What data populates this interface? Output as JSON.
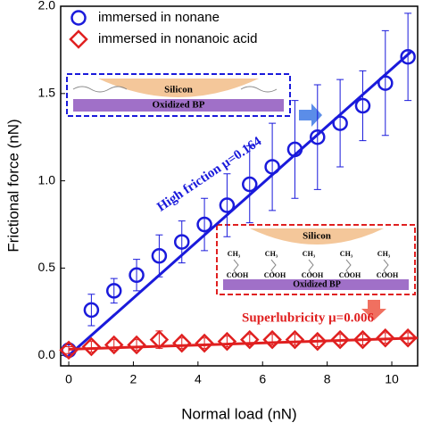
{
  "chart_data": {
    "type": "scatter",
    "xlabel": "Normal load (nN)",
    "ylabel": "Frictional force (nN)",
    "xlim": [
      -0.25,
      10.8
    ],
    "ylim": [
      -0.06,
      2.0
    ],
    "xticks": [
      0,
      2,
      4,
      6,
      8,
      10
    ],
    "yticks": [
      {
        "value": 0,
        "label": "0.0"
      },
      0.5,
      {
        "value": 1,
        "label": "1.0"
      },
      1.5,
      {
        "value": 2,
        "label": "2.0"
      }
    ],
    "legend": "upper left",
    "x": [
      0,
      0.7,
      1.4,
      2.1,
      2.8,
      3.5,
      4.2,
      4.9,
      5.6,
      6.3,
      7.0,
      7.7,
      8.4,
      9.1,
      9.8,
      10.5
    ],
    "series": [
      {
        "name": "immersed in nonane",
        "color": "#1a1adb",
        "marker": "circle",
        "values": [
          0.03,
          0.26,
          0.37,
          0.46,
          0.57,
          0.65,
          0.75,
          0.86,
          0.98,
          1.08,
          1.18,
          1.25,
          1.33,
          1.43,
          1.56,
          1.71
        ],
        "errors": [
          0.03,
          0.09,
          0.07,
          0.09,
          0.12,
          0.12,
          0.15,
          0.18,
          0.22,
          0.25,
          0.28,
          0.3,
          0.25,
          0.2,
          0.3,
          0.25
        ]
      },
      {
        "name": "immersed in nonanoic acid",
        "color": "#e02020",
        "marker": "diamond",
        "values": [
          0.03,
          0.05,
          0.06,
          0.06,
          0.09,
          0.07,
          0.07,
          0.08,
          0.09,
          0.09,
          0.09,
          0.08,
          0.09,
          0.09,
          0.1,
          0.1
        ],
        "errors": [
          0.02,
          0.03,
          0.03,
          0.03,
          0.05,
          0.03,
          0.03,
          0.03,
          0.03,
          0.03,
          0.03,
          0.03,
          0.03,
          0.03,
          0.03,
          0.03
        ]
      }
    ],
    "fits": [
      {
        "color": "#1a1adb",
        "x": [
          0,
          10.6
        ],
        "values": [
          0.0,
          1.74
        ]
      },
      {
        "color": "#e02020",
        "x": [
          0,
          10.8
        ],
        "values": [
          0.035,
          0.1
        ]
      }
    ],
    "annotations": {
      "high": "High friction μ=0.164",
      "low": "Superlubricity μ=0.006"
    },
    "inset_top": {
      "top": "Silicon",
      "bottom": "Oxidized BP"
    },
    "inset_bottom": {
      "top": "Silicon",
      "bottom": "Oxidized BP",
      "head_labels": [
        "CH₃",
        "CH₃",
        "CH₃",
        "CH₃",
        "CH₃"
      ],
      "tail_labels": [
        "COOH",
        "COOH",
        "COOH",
        "COOH",
        "COOH"
      ]
    }
  }
}
